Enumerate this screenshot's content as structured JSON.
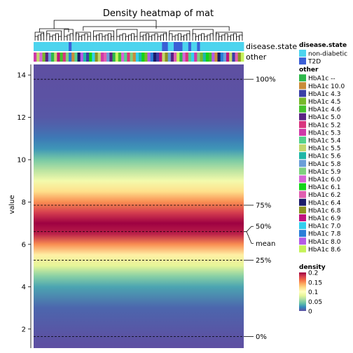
{
  "chart_data": {
    "type": "heatmap",
    "title": "Density heatmap of mat",
    "ylabel": "value",
    "ylim": [
      1.1,
      14.5
    ],
    "y_ticks": [
      2,
      4,
      6,
      8,
      10,
      12,
      14
    ],
    "n_columns": 72,
    "density_profile": {
      "y": [
        1.1,
        1.5,
        2.0,
        3.0,
        4.0,
        4.5,
        5.0,
        5.5,
        6.0,
        6.5,
        7.0,
        7.5,
        8.0,
        8.5,
        9.0,
        9.5,
        10.0,
        10.5,
        11.0,
        11.5,
        12.0,
        13.0,
        14.5
      ],
      "density": [
        0.0,
        0.001,
        0.003,
        0.008,
        0.03,
        0.05,
        0.08,
        0.11,
        0.15,
        0.19,
        0.2,
        0.18,
        0.15,
        0.12,
        0.09,
        0.065,
        0.045,
        0.025,
        0.015,
        0.008,
        0.003,
        0.001,
        0.0
      ]
    },
    "quantile_lines": [
      {
        "label": "100%",
        "value": 13.8
      },
      {
        "label": "75%",
        "value": 7.85
      },
      {
        "label": "50%",
        "value": 6.6
      },
      {
        "label": "mean",
        "value": 6.6
      },
      {
        "label": "25%",
        "value": 5.25
      },
      {
        "label": "0%",
        "value": 1.65
      }
    ],
    "annotations": [
      {
        "name": "disease.state",
        "legend_title": "disease.state",
        "levels": [
          {
            "label": "non-diabetic",
            "color": "#4dd4ee"
          },
          {
            "label": "T2D",
            "color": "#3b5fd6"
          }
        ],
        "column_levels": [
          0,
          0,
          0,
          0,
          0,
          0,
          0,
          0,
          0,
          0,
          0,
          0,
          1,
          0,
          0,
          0,
          0,
          0,
          0,
          0,
          0,
          0,
          0,
          0,
          0,
          0,
          0,
          0,
          0,
          0,
          0,
          0,
          0,
          0,
          0,
          0,
          0,
          0,
          0,
          0,
          0,
          0,
          0,
          0,
          1,
          1,
          0,
          0,
          1,
          1,
          1,
          0,
          0,
          1,
          0,
          0,
          1,
          0,
          0,
          0,
          0,
          0,
          0,
          0,
          0,
          0,
          0,
          0,
          0,
          0,
          0,
          0
        ]
      },
      {
        "name": "other",
        "legend_title": "other",
        "levels": [
          {
            "label": "HbA1c --",
            "color": "#2db84a"
          },
          {
            "label": "HbA1c 10.0",
            "color": "#c98c3a"
          },
          {
            "label": "HbA1c 4.3",
            "color": "#3a3fa6"
          },
          {
            "label": "HbA1c 4.5",
            "color": "#77b82a"
          },
          {
            "label": "HbA1c 4.6",
            "color": "#44c22c"
          },
          {
            "label": "HbA1c 5.0",
            "color": "#5a2383"
          },
          {
            "label": "HbA1c 5.2",
            "color": "#d9357e"
          },
          {
            "label": "HbA1c 5.3",
            "color": "#cf3aa8"
          },
          {
            "label": "HbA1c 5.4",
            "color": "#55d28c"
          },
          {
            "label": "HbA1c 5.5",
            "color": "#c2d66e"
          },
          {
            "label": "HbA1c 5.6",
            "color": "#1fb7a6"
          },
          {
            "label": "HbA1c 5.8",
            "color": "#6a9ed8"
          },
          {
            "label": "HbA1c 5.9",
            "color": "#7ed17e"
          },
          {
            "label": "HbA1c 6.0",
            "color": "#d665d6"
          },
          {
            "label": "HbA1c 6.1",
            "color": "#12d418"
          },
          {
            "label": "HbA1c 6.2",
            "color": "#e05fb0"
          },
          {
            "label": "HbA1c 6.4",
            "color": "#1c1c6a"
          },
          {
            "label": "HbA1c 6.8",
            "color": "#8c9422"
          },
          {
            "label": "HbA1c 6.9",
            "color": "#c0127f"
          },
          {
            "label": "HbA1c 7.0",
            "color": "#33cfee"
          },
          {
            "label": "HbA1c 7.8",
            "color": "#2a7ed8"
          },
          {
            "label": "HbA1c 8.0",
            "color": "#b45ae6"
          },
          {
            "label": "HbA1c 8.6",
            "color": "#c5f25a"
          }
        ],
        "column_levels": [
          7,
          9,
          13,
          3,
          5,
          11,
          0,
          9,
          18,
          4,
          6,
          12,
          20,
          1,
          8,
          16,
          21,
          10,
          2,
          14,
          19,
          17,
          9,
          7,
          15,
          11,
          5,
          0,
          22,
          4,
          13,
          8,
          6,
          12,
          1,
          19,
          10,
          14,
          3,
          21,
          20,
          16,
          2,
          18,
          9,
          17,
          11,
          5,
          15,
          22,
          0,
          13,
          6,
          8,
          19,
          7,
          12,
          3,
          10,
          14,
          4,
          21,
          1,
          16,
          20,
          11,
          18,
          9,
          2,
          15,
          17,
          22
        ]
      }
    ],
    "density_legend": {
      "title": "density",
      "ticks": [
        "0.2",
        "0.15",
        "0.1",
        "0.05",
        "0"
      ],
      "stops": [
        "#5e4fa2",
        "#3288bd",
        "#66c2a5",
        "#abdda4",
        "#e6f598",
        "#ffffbf",
        "#fee08b",
        "#fdae61",
        "#f46d43",
        "#d53e4f",
        "#9e0142"
      ]
    },
    "grid": false,
    "legend_position": "right"
  }
}
